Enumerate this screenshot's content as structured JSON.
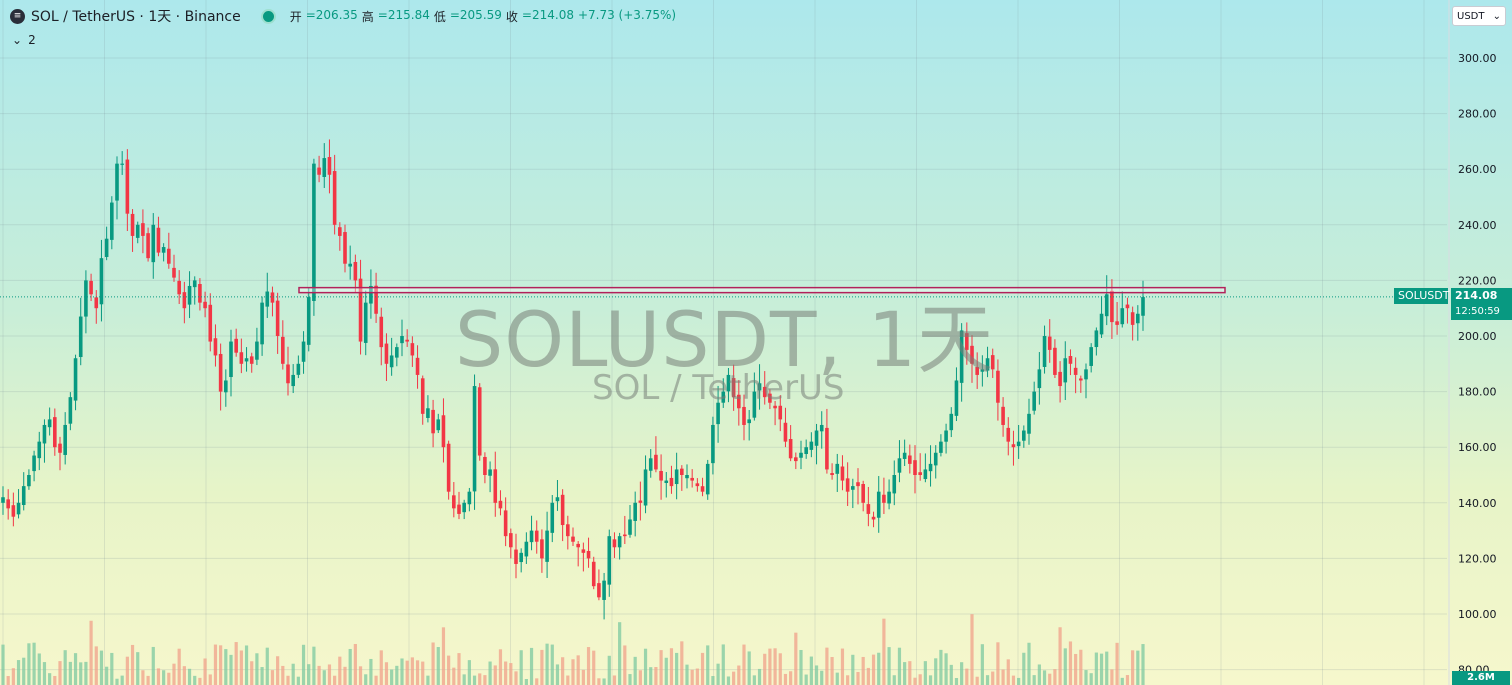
{
  "header": {
    "symbol_title": "SOL / TetherUS · 1天 · Binance",
    "ohlc": [
      {
        "label": "开",
        "value": "=206.35"
      },
      {
        "label": "高",
        "value": "=215.84"
      },
      {
        "label": "低",
        "value": "=205.59"
      },
      {
        "label": "收",
        "value": "=214.08"
      }
    ],
    "change": "+7.73 (+3.75%)",
    "indicator_count": "2"
  },
  "currency": "USDT",
  "watermark": {
    "main": "SOLUSDT, 1天",
    "sub": "SOL / TetherUS"
  },
  "price_labels": {
    "symbol": "SOLUSDT",
    "last_price": "214.08",
    "countdown": "12:50:59",
    "volume": "2.6M"
  },
  "colors": {
    "up": "#089981",
    "down": "#f23645",
    "zone": "#b2215a",
    "up_volume": "#7cc8a0",
    "down_volume": "#f0a08a"
  },
  "chart_data": {
    "type": "candlestick",
    "y_axis_ticks": [
      "300.00",
      "280.00",
      "260.00",
      "240.00",
      "220.00",
      "200.00",
      "180.00",
      "160.00",
      "140.00",
      "120.00",
      "100.00",
      "80.00"
    ],
    "ylim": [
      78,
      309
    ],
    "last_price": 214.08,
    "resistance_zone": [
      215.6,
      217.4
    ],
    "grid": true,
    "series_anchor_closes": [
      142,
      138,
      135,
      140,
      146,
      150,
      157,
      162,
      168,
      170,
      160,
      158,
      168,
      178,
      192,
      207,
      220,
      215,
      210,
      228,
      235,
      248,
      262,
      262,
      244,
      236,
      240,
      236,
      228,
      240,
      230,
      232,
      226,
      221,
      215,
      210,
      218,
      220,
      212,
      210,
      198,
      193,
      180,
      184,
      198,
      194,
      190,
      192,
      190,
      198,
      212,
      216,
      212,
      200,
      190,
      183,
      186,
      190,
      198,
      214,
      262,
      258,
      264,
      258,
      240,
      236,
      226,
      226,
      220,
      198,
      212,
      218,
      208,
      196,
      190,
      193,
      196,
      200,
      198,
      193,
      186,
      172,
      174,
      165,
      170,
      160,
      144,
      138,
      136,
      140,
      144,
      182,
      157,
      150,
      152,
      140,
      138,
      128,
      124,
      118,
      122,
      126,
      130,
      126,
      120,
      130,
      140,
      142,
      132,
      128,
      126,
      124,
      122,
      120,
      110,
      106,
      112,
      128,
      124,
      128,
      128,
      134,
      140,
      140,
      152,
      156,
      152,
      148,
      148,
      146,
      152,
      150,
      150,
      148,
      146,
      144,
      154,
      168,
      176,
      180,
      186,
      178,
      174,
      168,
      170,
      180,
      183,
      178,
      176,
      174,
      170,
      162,
      156,
      155,
      158,
      160,
      162,
      166,
      168,
      152,
      150,
      154,
      148,
      144,
      146,
      146,
      140,
      136,
      134,
      144,
      140,
      144,
      150,
      156,
      158,
      154,
      150,
      150,
      152,
      154,
      158,
      162,
      166,
      172,
      184,
      202,
      195,
      190,
      186,
      188,
      192,
      188,
      176,
      168,
      162,
      160,
      162,
      166,
      172,
      180,
      188,
      200,
      195,
      186,
      182,
      192,
      190,
      186,
      184,
      188,
      196,
      202,
      208,
      215,
      205,
      204,
      210,
      210,
      204,
      208,
      214
    ],
    "volume_scale_note": "volume shown as relative histogram",
    "last_volume": "2.6M"
  }
}
